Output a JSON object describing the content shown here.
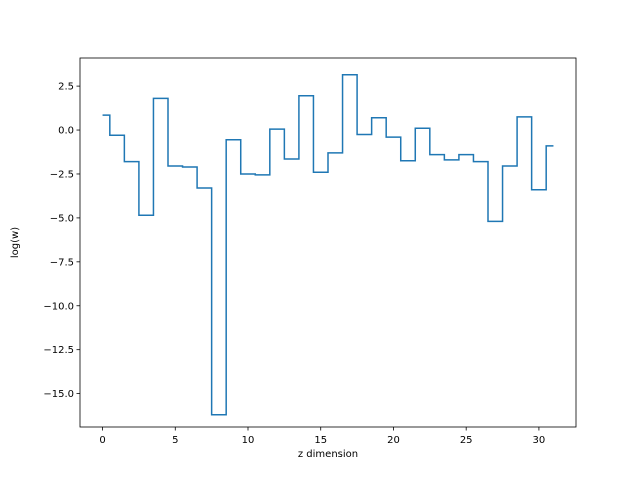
{
  "chart_data": {
    "type": "line",
    "drawstyle": "steps-mid",
    "title": "",
    "xlabel": "z dimension",
    "ylabel": "log(w)",
    "xlim": [
      -1.55,
      32.55
    ],
    "ylim": [
      -16.9,
      4.1
    ],
    "xticks": [
      0,
      5,
      10,
      15,
      20,
      25,
      30
    ],
    "xtick_labels": [
      "0",
      "5",
      "10",
      "15",
      "20",
      "25",
      "30"
    ],
    "yticks": [
      2.5,
      0.0,
      -2.5,
      -5.0,
      -7.5,
      -10.0,
      -12.5,
      -15.0
    ],
    "ytick_labels": [
      "2.5",
      "0.0",
      "−2.5",
      "−5.0",
      "−7.5",
      "−10.0",
      "−12.5",
      "−15.0"
    ],
    "grid": false,
    "series": [
      {
        "color": "#1f77b4",
        "x": [
          0,
          1,
          2,
          3,
          4,
          5,
          6,
          7,
          8,
          9,
          10,
          11,
          12,
          13,
          14,
          15,
          16,
          17,
          18,
          19,
          20,
          21,
          22,
          23,
          24,
          25,
          26,
          27,
          28,
          29,
          30,
          31
        ],
        "y": [
          0.85,
          -0.3,
          -1.8,
          -4.85,
          1.8,
          -2.05,
          -2.1,
          -3.3,
          -16.2,
          -0.55,
          -2.5,
          -2.55,
          0.05,
          -1.65,
          1.95,
          -2.4,
          -1.3,
          3.15,
          -0.25,
          0.7,
          -0.4,
          -1.75,
          0.1,
          -1.4,
          -1.7,
          -1.4,
          -1.8,
          -5.2,
          -2.05,
          0.75,
          -3.4,
          -0.9
        ]
      }
    ]
  }
}
